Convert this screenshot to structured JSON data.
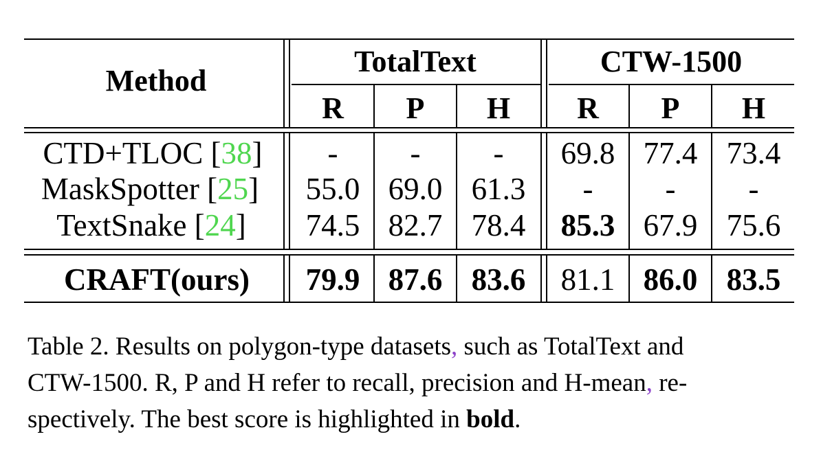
{
  "table": {
    "method_header": "Method",
    "groups": [
      "TotalText",
      "CTW-1500"
    ],
    "metrics": [
      "R",
      "P",
      "H"
    ],
    "rows": [
      {
        "method": "CTD+TLOC [",
        "ref": "38",
        "close": "]",
        "method_bold": false,
        "values": [
          "-",
          "-",
          "-",
          "69.8",
          "77.4",
          "73.4"
        ],
        "bold": [
          false,
          false,
          false,
          false,
          false,
          false
        ]
      },
      {
        "method": "MaskSpotter [",
        "ref": "25",
        "close": "]",
        "method_bold": false,
        "values": [
          "55.0",
          "69.0",
          "61.3",
          "-",
          "-",
          "-"
        ],
        "bold": [
          false,
          false,
          false,
          false,
          false,
          false
        ]
      },
      {
        "method": "TextSnake [",
        "ref": "24",
        "close": "]",
        "method_bold": false,
        "values": [
          "74.5",
          "82.7",
          "78.4",
          "85.3",
          "67.9",
          "75.6"
        ],
        "bold": [
          false,
          false,
          false,
          true,
          false,
          false
        ]
      },
      {
        "method": "CRAFT(ours)",
        "ref": "",
        "close": "",
        "method_bold": true,
        "values": [
          "79.9",
          "87.6",
          "83.6",
          "81.1",
          "86.0",
          "83.5"
        ],
        "bold": [
          true,
          true,
          true,
          false,
          true,
          true
        ]
      }
    ]
  },
  "caption": {
    "line1_a": "Table 2. Results on polygon-type datasets",
    "line1_comma": ",",
    "line1_b": " such as TotalText and",
    "line2_a": "CTW-1500. R, P and H refer to recall, precision and H-mean",
    "line2_comma": ",",
    "line2_b": " re-",
    "line3_a": "spectively. The best score is highlighted in ",
    "line3_bold": "bold",
    "line3_c": "."
  },
  "colors": {
    "ref_link": "#4fd64f",
    "punct_link": "#8b3fc8"
  }
}
